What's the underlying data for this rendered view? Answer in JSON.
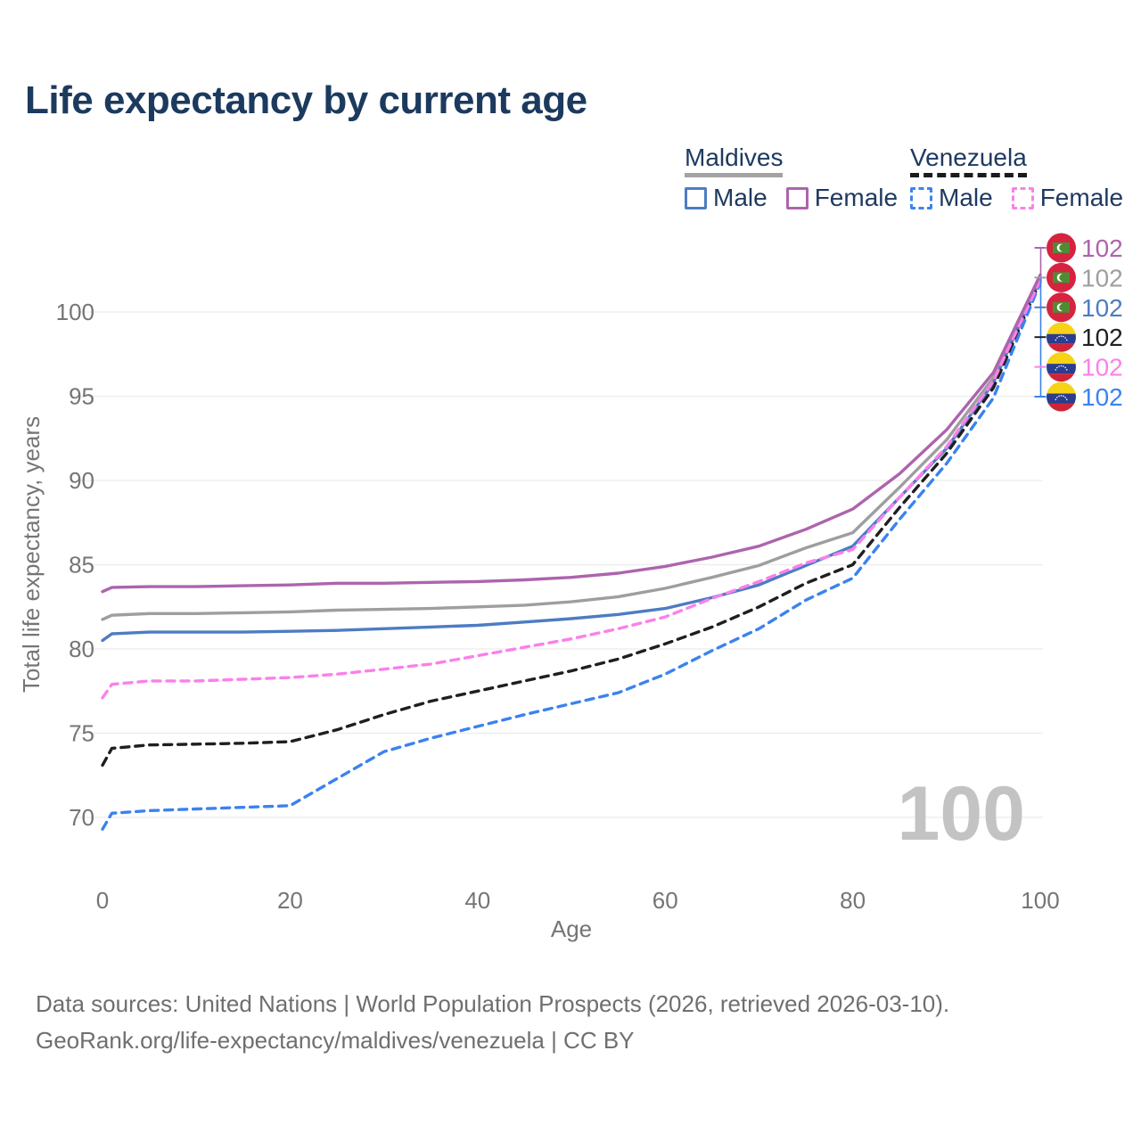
{
  "title": "Life expectancy by current age",
  "legend": {
    "groups": [
      {
        "name": "Maldives",
        "dash": false,
        "underline_color": "#a3a3a3",
        "items": [
          {
            "label": "Male",
            "color": "#4d7cc2"
          },
          {
            "label": "Female",
            "color": "#ad64ad"
          }
        ]
      },
      {
        "name": "Venezuela",
        "dash": true,
        "underline_color": "#1b1b1b",
        "items": [
          {
            "label": "Male",
            "color": "#3b82f0"
          },
          {
            "label": "Female",
            "color": "#fb80ea"
          }
        ]
      }
    ]
  },
  "watermark": "100",
  "footer": {
    "line1": "Data sources: United Nations | World Population Prospects (2026, retrieved 2026-03-10).",
    "line2": "GeoRank.org/life-expectancy/maldives/venezuela | CC BY"
  },
  "chart_data": {
    "type": "line",
    "title": "Life expectancy by current age",
    "xlabel": "Age",
    "ylabel": "Total life expectancy, years",
    "xlim": [
      0,
      100
    ],
    "ylim": [
      66,
      104
    ],
    "x_ticks": [
      0,
      20,
      40,
      60,
      80,
      100
    ],
    "y_ticks": [
      70,
      75,
      80,
      85,
      90,
      95,
      100
    ],
    "grid": true,
    "legend_position": "top-right",
    "hovered_age": "100",
    "x": [
      0,
      1,
      5,
      10,
      15,
      20,
      25,
      30,
      35,
      40,
      45,
      50,
      55,
      60,
      65,
      70,
      75,
      80,
      85,
      90,
      95,
      100
    ],
    "series": [
      {
        "name": "Maldives Female",
        "country": "Maldives",
        "flag": "maldives",
        "color": "#ad64ad",
        "label_color": "#ad64ad",
        "dash": false,
        "end_label": "102",
        "values": [
          83.4,
          83.65,
          83.7,
          83.7,
          83.75,
          83.8,
          83.9,
          83.9,
          83.95,
          84.0,
          84.1,
          84.25,
          84.5,
          84.9,
          85.45,
          86.1,
          87.1,
          88.3,
          90.4,
          93.0,
          96.4,
          102.2
        ]
      },
      {
        "name": "Maldives Both sexes",
        "country": "Maldives",
        "flag": "maldives",
        "color": "#9e9e9e",
        "label_color": "#9e9e9e",
        "dash": false,
        "end_label": "102",
        "values": [
          81.75,
          82.0,
          82.1,
          82.1,
          82.15,
          82.2,
          82.3,
          82.35,
          82.4,
          82.5,
          82.6,
          82.8,
          83.1,
          83.6,
          84.25,
          84.95,
          86.0,
          86.9,
          89.6,
          92.4,
          96.1,
          102.05
        ]
      },
      {
        "name": "Maldives Male",
        "country": "Maldives",
        "flag": "maldives",
        "color": "#4d7cc2",
        "label_color": "#4d7cc2",
        "dash": false,
        "end_label": "102",
        "values": [
          80.5,
          80.9,
          81.0,
          81.0,
          81.0,
          81.05,
          81.1,
          81.2,
          81.3,
          81.4,
          81.6,
          81.8,
          82.05,
          82.4,
          83.05,
          83.8,
          84.95,
          86.1,
          89.0,
          91.9,
          95.8,
          101.95
        ]
      },
      {
        "name": "Venezuela Both sexes",
        "country": "Venezuela",
        "flag": "venezuela",
        "color": "#1f1f1f",
        "label_color": "#212121",
        "dash": true,
        "end_label": "102",
        "values": [
          73.1,
          74.1,
          74.3,
          74.35,
          74.4,
          74.5,
          75.2,
          76.1,
          76.9,
          77.5,
          78.1,
          78.7,
          79.4,
          80.3,
          81.3,
          82.5,
          83.9,
          85.0,
          88.4,
          91.6,
          95.5,
          101.85
        ]
      },
      {
        "name": "Venezuela Female",
        "country": "Venezuela",
        "flag": "venezuela",
        "color": "#fb80ea",
        "label_color": "#fb80ea",
        "dash": true,
        "end_label": "102",
        "values": [
          77.1,
          77.9,
          78.1,
          78.1,
          78.2,
          78.3,
          78.5,
          78.8,
          79.1,
          79.6,
          80.1,
          80.6,
          81.2,
          81.9,
          83.0,
          84.0,
          85.1,
          85.9,
          89.0,
          92.0,
          95.9,
          101.9
        ]
      },
      {
        "name": "Venezuela Male",
        "country": "Venezuela",
        "flag": "venezuela",
        "color": "#3b82f0",
        "label_color": "#3b82f0",
        "dash": true,
        "end_label": "102",
        "values": [
          69.3,
          70.25,
          70.4,
          70.5,
          70.6,
          70.7,
          72.3,
          73.9,
          74.7,
          75.4,
          76.1,
          76.75,
          77.4,
          78.5,
          79.9,
          81.2,
          82.9,
          84.2,
          87.7,
          91.0,
          94.9,
          101.75
        ]
      }
    ]
  }
}
